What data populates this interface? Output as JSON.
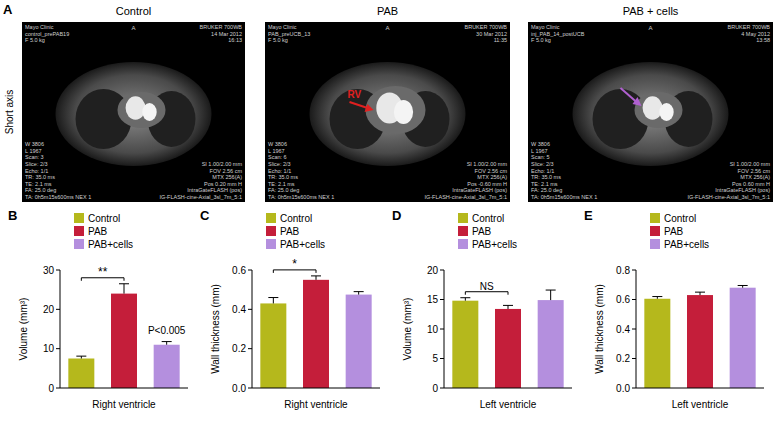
{
  "panel_a": {
    "label": "A",
    "side_label": "Short axis",
    "arrow_label": "RV",
    "images": [
      {
        "title": "Control",
        "orientation": "A",
        "top_left": [
          "Mayo Clinic",
          "control_prePAB19",
          "F 5.0 kg"
        ],
        "top_right": [
          "BRUKER 700WB",
          "14 Mar 2012",
          "16:13"
        ],
        "bottom_left": [
          "W 3806",
          "L 1967",
          "Scan: 3",
          "Slice: 2/3",
          "Echo: 1/1",
          "TR: 35.0 ms",
          "TE: 2.1 ms",
          "FA: 25.0 deg",
          "TA: 0h5m15s600ms NEX 1"
        ],
        "bottom_right": [
          "SI 1.00/2.00 mm",
          "FOV 2.56 cm",
          "MTX 256(A)",
          "Pos 0.20 mm H",
          "IntraGateFLASH (pos)",
          "IG-FLASH-cine-Axial_3sl_7m_5:1"
        ]
      },
      {
        "title": "PAB",
        "orientation": "A",
        "top_left": [
          "Mayo Clinic",
          "PAB_preUCB_13",
          "F 5.0 kg"
        ],
        "top_right": [
          "BRUKER 700WB",
          "30 Mar 2012",
          "11:35"
        ],
        "bottom_left": [
          "W 3806",
          "L 1967",
          "Scan: 6",
          "Slice: 2/3",
          "Echo: 1/1",
          "TR: 35.0 ms",
          "TE: 2.1 ms",
          "FA: 25.0 deg",
          "TA: 0h5m15s600ms NEX 1"
        ],
        "bottom_right": [
          "SI 1.00/2.00 mm",
          "FOV 2.56 cm",
          "MTX 256(A)",
          "Pos -0.60 mm H",
          "IntraGateFLASH (pos)",
          "IG-FLASH-cine-Axial_3sl_7m_5:1"
        ]
      },
      {
        "title": "PAB + cells",
        "orientation": "A",
        "top_left": [
          "Mayo Clinic",
          "inj_PAB_14_postUCB",
          "F 5.0 kg"
        ],
        "top_right": [
          "BRUKER 700WB",
          "4 May 2012",
          "13:58"
        ],
        "bottom_left": [
          "W 3806",
          "L 1967",
          "Scan: 5",
          "Slice: 2/3",
          "Echo: 1/1",
          "TR: 35.0 ms",
          "TE: 2.1 ms",
          "FA: 25.0 deg",
          "TA: 0h5m15s600ms NEX 1"
        ],
        "bottom_right": [
          "SI 1.00/2.00 mm",
          "FOV 2.56 cm",
          "MTX 256(A)",
          "Pos 0.60 mm H",
          "IntraGateFLASH (pos)",
          "IG-FLASH-cine-Axial_3sl_7m_5:1"
        ]
      }
    ]
  },
  "chart_data": [
    {
      "type": "bar",
      "panel_label": "B",
      "x_label": "Right ventricle",
      "y_label": "Volume (mm³)",
      "categories": [
        "Control",
        "PAB",
        "PAB+cells"
      ],
      "values": [
        7.5,
        24,
        11
      ],
      "errors": [
        0.6,
        2.5,
        0.8
      ],
      "colors": [
        "#b5b81c",
        "#c41e3a",
        "#b48fde"
      ],
      "ylim": [
        0,
        30
      ],
      "yticks": [
        0,
        10,
        20,
        30
      ],
      "legend": "top-left",
      "tick_labels": "y",
      "annotations": [
        {
          "text": "**",
          "between": [
            0,
            1
          ]
        },
        {
          "text": "P<0.005",
          "at": 2
        }
      ]
    },
    {
      "type": "bar",
      "panel_label": "C",
      "x_label": "Right ventricle",
      "y_label": "Wall thickness (mm)",
      "categories": [
        "Control",
        "PAB",
        "PAB+cells"
      ],
      "values": [
        0.43,
        0.55,
        0.475
      ],
      "errors": [
        0.03,
        0.02,
        0.015
      ],
      "colors": [
        "#b5b81c",
        "#c41e3a",
        "#b48fde"
      ],
      "ylim": [
        0,
        0.6
      ],
      "yticks": [
        {
          "value": 0,
          "label": "0.0"
        },
        {
          "value": 0.2,
          "label": "0.2"
        },
        {
          "value": 0.4,
          "label": "0.4"
        },
        {
          "value": 0.6,
          "label": "0.6"
        }
      ],
      "legend": "top-left",
      "tick_labels": "y",
      "annotations": [
        {
          "text": "*",
          "between": [
            0,
            1
          ]
        }
      ]
    },
    {
      "type": "bar",
      "panel_label": "D",
      "x_label": "Left ventricle",
      "y_label": "Volume (mm³)",
      "categories": [
        "Control",
        "PAB",
        "PAB+cells"
      ],
      "values": [
        14.8,
        13.4,
        14.9
      ],
      "errors": [
        0.5,
        0.6,
        1.7
      ],
      "colors": [
        "#b5b81c",
        "#c41e3a",
        "#b48fde"
      ],
      "ylim": [
        0,
        20
      ],
      "yticks": [
        0,
        5,
        10,
        15,
        20
      ],
      "legend": "top-left",
      "tick_labels": "y",
      "annotations": [
        {
          "text": "NS",
          "between": [
            0,
            1
          ]
        }
      ]
    },
    {
      "type": "bar",
      "panel_label": "E",
      "x_label": "Left ventricle",
      "y_label": "Wall thickness (mm)",
      "categories": [
        "Control",
        "PAB",
        "PAB+cells"
      ],
      "values": [
        0.605,
        0.63,
        0.68
      ],
      "errors": [
        0.015,
        0.02,
        0.015
      ],
      "colors": [
        "#b5b81c",
        "#c41e3a",
        "#b48fde"
      ],
      "ylim": [
        0,
        0.8
      ],
      "yticks": [
        {
          "value": 0,
          "label": "0.0"
        },
        {
          "value": 0.2,
          "label": "0.2"
        },
        {
          "value": 0.4,
          "label": "0.4"
        },
        {
          "value": 0.6,
          "label": "0.6"
        },
        {
          "value": 0.8,
          "label": "0.8"
        }
      ],
      "legend": "top-left",
      "tick_labels": "y",
      "annotations": []
    }
  ]
}
